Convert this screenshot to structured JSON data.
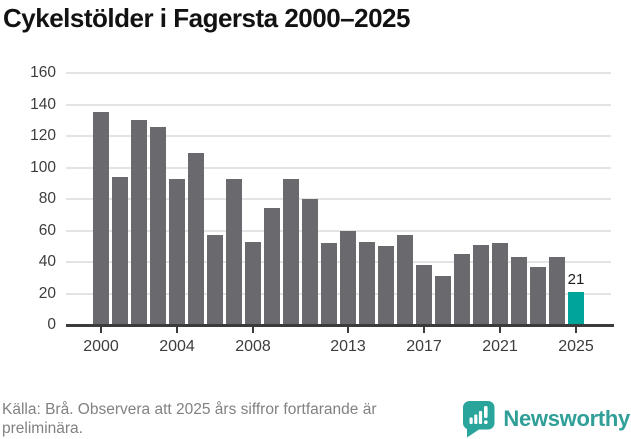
{
  "title": "Cykelstölder i Fagersta 2000–2025",
  "chart_data": {
    "type": "bar",
    "title": "Cykelstölder i Fagersta 2000–2025",
    "x": [
      2000,
      2001,
      2002,
      2003,
      2004,
      2005,
      2006,
      2007,
      2008,
      2009,
      2010,
      2011,
      2012,
      2013,
      2014,
      2015,
      2016,
      2017,
      2018,
      2019,
      2020,
      2021,
      2022,
      2023,
      2024,
      2025
    ],
    "values": [
      135,
      94,
      130,
      126,
      93,
      109,
      57,
      93,
      53,
      74,
      93,
      80,
      52,
      60,
      53,
      50,
      57,
      38,
      31,
      45,
      51,
      52,
      43,
      37,
      43,
      21
    ],
    "highlight_index": 25,
    "highlight_label": "21",
    "xlabel": "",
    "ylabel": "",
    "ylim": [
      0,
      160
    ],
    "yticks": [
      0,
      20,
      40,
      60,
      80,
      100,
      120,
      140,
      160
    ],
    "xtick_labels": [
      "2000",
      "2004",
      "2008",
      "2013",
      "2017",
      "2021",
      "2025"
    ],
    "xtick_years": [
      2000,
      2004,
      2008,
      2013,
      2017,
      2021,
      2025
    ],
    "grid": true,
    "legend": false,
    "colors": {
      "bar": "#6a6a6e",
      "highlight": "#00a49b",
      "gridline": "#e4e4e6",
      "axis": "#3b3b3b",
      "tick_label": "#3d3d3d"
    }
  },
  "footer": {
    "source_lines": [
      "Källa: Brå. Observera att 2025 års siffror fortfarande är",
      "preliminära."
    ],
    "brand": "Newsworthy",
    "brand_color": "#2f9f97"
  }
}
